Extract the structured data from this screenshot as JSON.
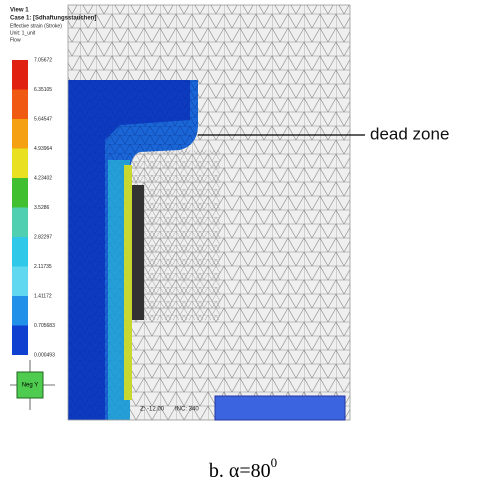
{
  "header": {
    "view": "View 1",
    "case": "Case 1: [Sdhaftungsstauchen]",
    "variable": "Effective strain (Stroke)",
    "unit": "Unit: 1_unit",
    "mode": "Flow"
  },
  "legend": {
    "labels": [
      "7.05672",
      "6.35105",
      "5.64547",
      "4.93964",
      "4.23402",
      "3.5286",
      "2.82297",
      "2.11735",
      "1.41172",
      "0.705683",
      "0.000493"
    ]
  },
  "orientation": {
    "label": "Neg Y"
  },
  "status": {
    "z": "Z: -12.00",
    "inc": "INC: 340"
  },
  "annotation": "dead zone",
  "caption": {
    "text": "b. α=80",
    "superscript": "0"
  }
}
